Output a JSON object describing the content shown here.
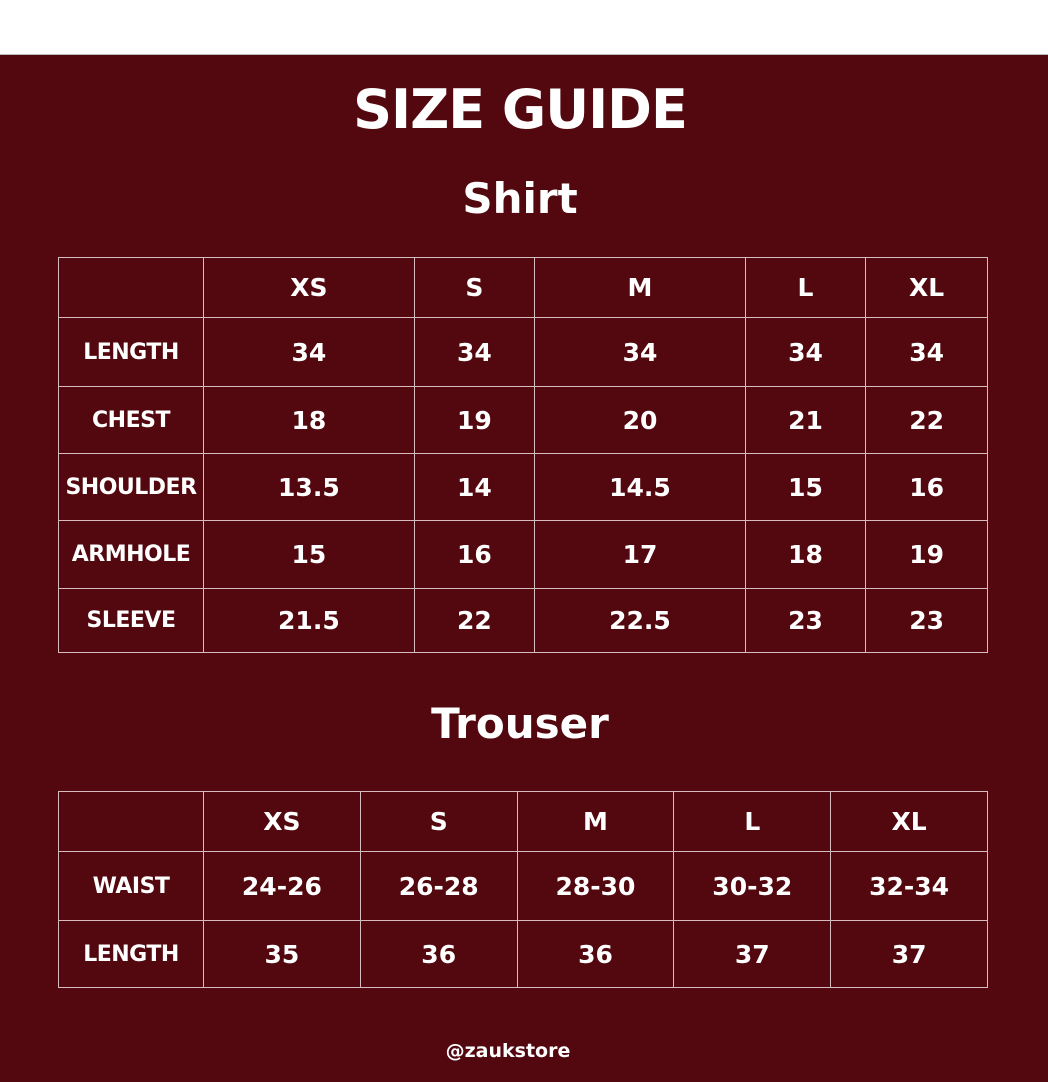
{
  "title": "SIZE GUIDE",
  "colors": {
    "background": "#52080e",
    "text": "#ffffff",
    "grid": "#d6bcbf"
  },
  "shirt": {
    "heading": "Shirt",
    "sizes": [
      "XS",
      "S",
      "M",
      "L",
      "XL"
    ],
    "rows": [
      {
        "label": "LENGTH",
        "values": [
          "34",
          "34",
          "34",
          "34",
          "34"
        ]
      },
      {
        "label": "CHEST",
        "values": [
          "18",
          "19",
          "20",
          "21",
          "22"
        ]
      },
      {
        "label": "SHOULDER",
        "values": [
          "13.5",
          "14",
          "14.5",
          "15",
          "16"
        ]
      },
      {
        "label": "ARMHOLE",
        "values": [
          "15",
          "16",
          "17",
          "18",
          "19"
        ]
      },
      {
        "label": "SLEEVE",
        "values": [
          "21.5",
          "22",
          "22.5",
          "23",
          "23"
        ]
      }
    ]
  },
  "trouser": {
    "heading": "Trouser",
    "sizes": [
      "XS",
      "S",
      "M",
      "L",
      "XL"
    ],
    "rows": [
      {
        "label": "WAIST",
        "values": [
          "24-26",
          "26-28",
          "28-30",
          "30-32",
          "32-34"
        ]
      },
      {
        "label": "LENGTH",
        "values": [
          "35",
          "36",
          "36",
          "37",
          "37"
        ]
      }
    ]
  },
  "footer": "@zaukstore"
}
